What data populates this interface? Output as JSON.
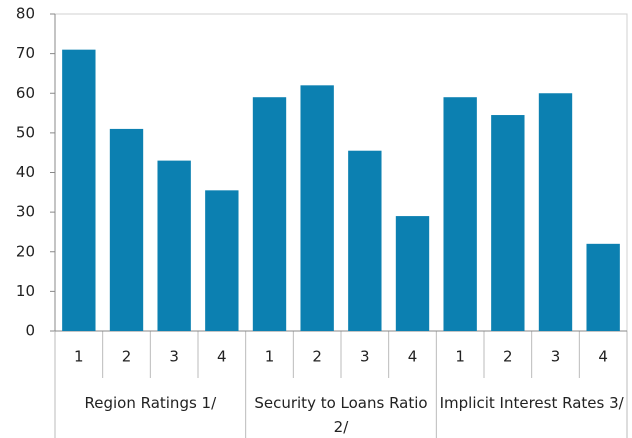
{
  "chart_data": {
    "type": "bar",
    "categories": [
      "1",
      "2",
      "3",
      "4",
      "1",
      "2",
      "3",
      "4",
      "1",
      "2",
      "3",
      "4"
    ],
    "groups": [
      "Region Ratings 1/",
      "Security to Loans Ratio 2/",
      "Implicit Interest Rates 3/"
    ],
    "values": [
      71,
      51,
      43,
      35.5,
      59,
      62,
      45.5,
      29,
      59,
      54.5,
      60,
      22
    ],
    "color": "#0c80b1",
    "ylim": [
      0,
      80
    ],
    "yticks": [
      0,
      10,
      20,
      30,
      40,
      50,
      60,
      70,
      80
    ],
    "grid": false
  }
}
